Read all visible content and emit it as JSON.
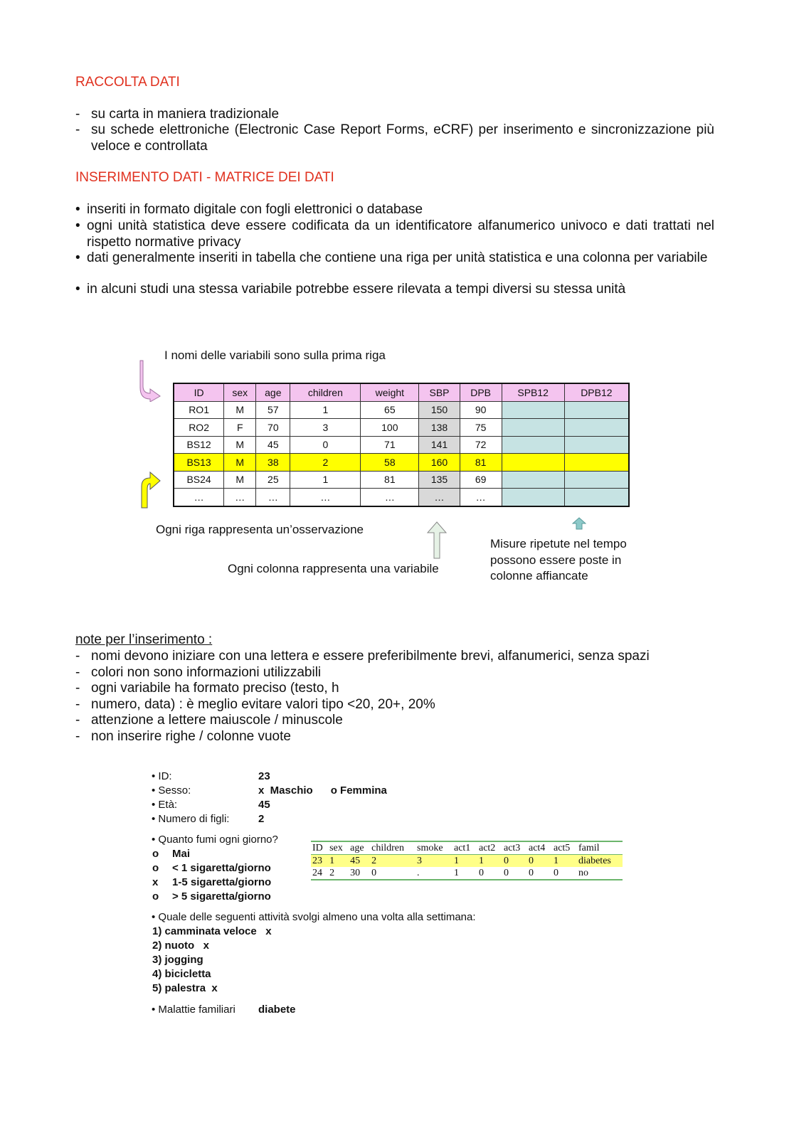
{
  "section1": {
    "title": "RACCOLTA DATI",
    "items": [
      "su carta in maniera tradizionale",
      "su schede elettroniche (Electronic Case Report Forms, eCRF) per inserimento e sincronizzazione più veloce e controllata"
    ]
  },
  "section2": {
    "title": "INSERIMENTO DATI - MATRICE DEI DATI",
    "items": [
      "inseriti in formato digitale con fogli elettronici o database",
      "ogni unità statistica deve essere codificata da un identificatore alfanumerico univoco e dati trattati nel rispetto normative privacy",
      "dati generalmente inseriti in tabella che contiene una riga per unità statistica e una colonna per variabile",
      "in alcuni studi una stessa variabile potrebbe essere rilevata a tempi diversi su stessa unità"
    ]
  },
  "figure": {
    "caption_top": "I nomi delle variabili sono sulla prima riga",
    "caption_rows": "Ogni riga rappresenta un’osservazione",
    "caption_cols": "Ogni colonna rappresenta una variabile",
    "caption_repeated": [
      "Misure ripetute nel tempo",
      "possono essere poste in",
      "colonne affiancate"
    ],
    "headers": [
      "ID",
      "sex",
      "age",
      "children",
      "weight",
      "SBP",
      "DPB",
      "SPB12",
      "DPB12"
    ],
    "rows": [
      [
        "RO1",
        "M",
        "57",
        "1",
        "65",
        "150",
        "90",
        "",
        ""
      ],
      [
        "RO2",
        "F",
        "70",
        "3",
        "100",
        "138",
        "75",
        "",
        ""
      ],
      [
        "BS12",
        "M",
        "45",
        "0",
        "71",
        "141",
        "72",
        "",
        ""
      ],
      [
        "BS13",
        "M",
        "38",
        "2",
        "58",
        "160",
        "81",
        "",
        ""
      ],
      [
        "BS24",
        "M",
        "25",
        "1",
        "81",
        "135",
        "69",
        "",
        ""
      ],
      [
        "…",
        "…",
        "…",
        "…",
        "…",
        "…",
        "…",
        "",
        ""
      ]
    ],
    "highlight_row": 3,
    "colors": {
      "header": "#f4c4ef",
      "highlight": "#ffff00",
      "sbp": "#d9d9d9",
      "repeated": "#c6e3e3"
    }
  },
  "notes": {
    "title": "note per l’inserimento :",
    "items": [
      "nomi devono iniziare con una lettera e essere preferibilmente brevi, alfanumerici, senza spazi",
      "colori non sono informazioni utilizzabili",
      "ogni variabile ha formato preciso (testo, h",
      "numero, data) : è meglio evitare valori tipo <20, 20+, 20%",
      "attenzione a lettere maiuscole / minuscole",
      "non inserire righe / colonne vuote"
    ]
  },
  "form": {
    "fields": [
      {
        "label": "• ID:",
        "value": "23"
      },
      {
        "label": "• Sesso:",
        "value": "x  Maschio      o Femmina"
      },
      {
        "label": "• Età:",
        "value": "45"
      },
      {
        "label": "• Numero di figli:",
        "value": "2"
      }
    ],
    "smoke_q": "• Quanto fumi ogni giorno?",
    "smoke_opts": [
      [
        "o",
        "Mai"
      ],
      [
        "o",
        "< 1 sigaretta/giorno"
      ],
      [
        "x",
        "1-5 sigaretta/giorno"
      ],
      [
        "o",
        "> 5 sigaretta/giorno"
      ]
    ],
    "act_q": "• Quale delle seguenti attività svolgi almeno una volta alla settimana:",
    "acts": [
      "1) camminata veloce   x",
      "2) nuoto   x",
      "3) jogging",
      "4) bicicletta",
      "5) palestra  x"
    ],
    "family_label": "• Malattie familiari",
    "family_value": "diabete"
  },
  "coded": {
    "headers": [
      "ID",
      "sex",
      "age",
      "children",
      "smoke",
      "act1",
      "act2",
      "act3",
      "act4",
      "act5",
      "famil"
    ],
    "rows": [
      [
        "23",
        "1",
        "45",
        "2",
        "3",
        "1",
        "1",
        "0",
        "0",
        "1",
        "diabetes"
      ],
      [
        "24",
        "2",
        "30",
        "0",
        ".",
        "1",
        "0",
        "0",
        "0",
        "0",
        "no"
      ]
    ]
  }
}
